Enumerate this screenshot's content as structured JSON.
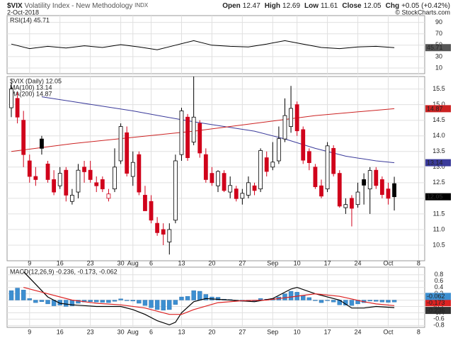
{
  "header": {
    "symbol": "$VIX",
    "name": "Volatility Index - New Methodology",
    "exchange": "INDX",
    "date": "2-Oct-2018",
    "copyright": "© StockCharts.com",
    "quote": [
      {
        "label": "Open",
        "value": "12.47"
      },
      {
        "label": "High",
        "value": "12.69"
      },
      {
        "label": "Low",
        "value": "11.61"
      },
      {
        "label": "Close",
        "value": "12.05"
      },
      {
        "label": "Chg",
        "value": "+0.05 (+0.42%)"
      }
    ]
  },
  "chart_data": [
    {
      "type": "candlestick",
      "title": "$VIX (Daily) 12.05",
      "open": [
        14.9,
        15.2,
        14.5,
        13.2,
        12.7,
        13.9,
        13.1,
        12.6,
        12.4,
        12.9,
        11.9,
        12.2,
        13.0,
        12.9,
        12.5,
        12.6,
        12.0,
        12.3,
        13.2,
        14.1,
        12.7,
        13.4,
        12.1,
        11.9,
        11.2,
        11.0,
        10.6,
        11.3,
        13.4,
        14.6,
        13.8,
        14.4,
        13.4,
        12.8,
        12.4,
        12.8,
        12.2,
        12.3,
        12.0,
        12.1,
        12.4,
        12.3,
        13.3,
        13.0,
        13.2,
        13.9,
        14.3,
        15.0,
        14.2,
        13.5,
        13.0,
        12.4,
        12.3,
        13.6,
        12.8,
        11.7,
        12.0,
        11.8,
        12.6,
        12.3,
        12.9,
        12.6,
        12.3,
        12.47
      ],
      "high": [
        15.7,
        15.4,
        14.8,
        13.4,
        13.0,
        14.0,
        13.2,
        12.9,
        13.0,
        13.0,
        12.3,
        13.1,
        13.2,
        13.2,
        12.7,
        12.7,
        12.3,
        13.6,
        14.4,
        14.3,
        13.5,
        13.5,
        12.4,
        12.1,
        11.4,
        11.2,
        11.2,
        13.4,
        14.9,
        14.7,
        15.9,
        14.5,
        13.6,
        13.0,
        12.9,
        12.9,
        12.7,
        12.4,
        12.3,
        12.7,
        12.5,
        13.6,
        13.5,
        13.8,
        14.3,
        15.2,
        15.6,
        15.1,
        14.3,
        13.6,
        13.1,
        12.6,
        13.8,
        13.7,
        12.9,
        12.0,
        12.1,
        12.5,
        12.8,
        13.0,
        13.0,
        12.7,
        12.5,
        12.69
      ],
      "low": [
        14.6,
        14.4,
        13.0,
        12.5,
        12.4,
        13.4,
        12.5,
        12.1,
        12.3,
        11.9,
        11.8,
        12.0,
        12.5,
        12.5,
        12.2,
        12.2,
        11.9,
        12.2,
        13.1,
        12.7,
        12.4,
        12.1,
        11.6,
        11.2,
        10.8,
        10.5,
        10.2,
        11.2,
        13.2,
        13.2,
        13.7,
        13.3,
        12.5,
        12.4,
        12.2,
        12.2,
        12.0,
        11.9,
        11.8,
        12.0,
        12.1,
        12.2,
        12.7,
        12.9,
        13.1,
        13.8,
        14.1,
        14.0,
        13.1,
        12.9,
        12.3,
        12.0,
        12.2,
        12.7,
        11.7,
        11.5,
        11.1,
        11.7,
        11.8,
        11.5,
        12.3,
        12.0,
        11.8,
        11.61
      ],
      "close": [
        15.5,
        14.6,
        13.4,
        12.7,
        12.6,
        13.6,
        12.6,
        12.2,
        12.8,
        12.1,
        12.1,
        12.9,
        12.85,
        12.6,
        12.4,
        12.3,
        12.14,
        13.0,
        14.3,
        12.8,
        13.15,
        12.2,
        11.6,
        11.3,
        10.9,
        10.85,
        11.0,
        13.2,
        14.8,
        13.3,
        14.6,
        13.45,
        12.6,
        12.5,
        12.86,
        12.25,
        12.41,
        11.99,
        12.16,
        12.5,
        12.25,
        13.53,
        12.86,
        13.16,
        13.91,
        14.65,
        14.88,
        14.16,
        13.22,
        13.14,
        12.37,
        12.07,
        13.68,
        12.79,
        11.75,
        11.8,
        11.68,
        12.2,
        12.42,
        12.89,
        12.41,
        12.12,
        12.0,
        12.05
      ],
      "up_color": "#000000",
      "down_color": "#d0021b",
      "series": [
        {
          "name": "MA(100) 13.14",
          "color": "#3a3a9a",
          "x": [
            5,
            10,
            15,
            20,
            25,
            30,
            35,
            40,
            45,
            50,
            55,
            60,
            63
          ],
          "values": [
            15.25,
            15.1,
            14.95,
            14.8,
            14.62,
            14.45,
            14.3,
            14.15,
            13.9,
            13.6,
            13.35,
            13.2,
            13.14
          ]
        },
        {
          "name": "MA(200) 14.87",
          "color": "#cc2222",
          "x": [
            0,
            10,
            20,
            30,
            40,
            50,
            60,
            63
          ],
          "values": [
            13.5,
            13.75,
            13.95,
            14.15,
            14.4,
            14.65,
            14.82,
            14.87
          ]
        }
      ],
      "xlim": [
        -0.7,
        68
      ],
      "xticks": [
        {
          "value": 3,
          "label": "9"
        },
        {
          "value": 8,
          "label": "16"
        },
        {
          "value": 13,
          "label": "23"
        },
        {
          "value": 18,
          "label": "30"
        },
        {
          "value": 20,
          "label": "Aug"
        },
        {
          "value": 23,
          "label": "6"
        },
        {
          "value": 28,
          "label": "13"
        },
        {
          "value": 33,
          "label": "20"
        },
        {
          "value": 38,
          "label": "27"
        },
        {
          "value": 43,
          "label": "Sep"
        },
        {
          "value": 47,
          "label": "10"
        },
        {
          "value": 52,
          "label": "17"
        },
        {
          "value": 57,
          "label": "24"
        },
        {
          "value": 62,
          "label": "Oct"
        },
        {
          "value": 67,
          "label": "8"
        }
      ],
      "ylim": [
        10.0,
        15.9
      ],
      "yticks": [
        10.5,
        {
          "value": 11,
          "label": "11.0"
        },
        11.5,
        {
          "value": 12,
          "label": "12.0"
        },
        12.5,
        {
          "value": 13,
          "label": "13.0"
        },
        13.5,
        {
          "value": 14,
          "label": "14.0"
        },
        14.5,
        {
          "value": 15,
          "label": "15.0"
        },
        15.5
      ],
      "grid": true
    },
    {
      "type": "line",
      "title": "RSI(14) 45.71",
      "series": [
        {
          "name": "RSI(14)",
          "color": "#000000",
          "x": [
            0,
            3,
            6,
            9,
            12,
            15,
            18,
            21,
            24,
            27,
            30,
            33,
            36,
            39,
            42,
            45,
            48,
            51,
            54,
            57,
            60,
            63
          ],
          "values": [
            52,
            44,
            48,
            45,
            49,
            46,
            51,
            47,
            42,
            50,
            58,
            50,
            48,
            47,
            52,
            58,
            52,
            46,
            44,
            47,
            48,
            45.71
          ]
        }
      ],
      "ylim": [
        0,
        102
      ],
      "yticks": [
        90,
        70,
        50,
        30,
        10
      ],
      "grid": true
    },
    {
      "type": "macd",
      "title": "MACD(12,26,9) -0.236, -0.173, -0.062",
      "series": [
        {
          "name": "MACD",
          "color": "#000000",
          "x": [
            2,
            4,
            6,
            8,
            10,
            14,
            18,
            20,
            22,
            24,
            26,
            27,
            28,
            30,
            32,
            36,
            40,
            43,
            46,
            47,
            50,
            54,
            56,
            58,
            60,
            63
          ],
          "values": [
            0.9,
            0.5,
            0.1,
            -0.1,
            -0.15,
            -0.2,
            -0.2,
            -0.3,
            -0.45,
            -0.65,
            -0.78,
            -0.7,
            -0.4,
            -0.05,
            0.05,
            0.0,
            -0.05,
            0.05,
            0.35,
            0.4,
            0.2,
            0.0,
            -0.25,
            -0.25,
            -0.2,
            -0.236
          ]
        },
        {
          "name": "Signal",
          "color": "#dd2222",
          "x": [
            2,
            6,
            10,
            14,
            18,
            22,
            26,
            28,
            30,
            34,
            38,
            42,
            46,
            50,
            54,
            58,
            60,
            63
          ],
          "values": [
            0.4,
            0.2,
            0.0,
            -0.1,
            -0.15,
            -0.25,
            -0.45,
            -0.45,
            -0.3,
            -0.08,
            -0.02,
            0.0,
            0.1,
            0.2,
            0.12,
            -0.05,
            -0.12,
            -0.173
          ]
        }
      ],
      "histogram": {
        "color": "#3d8fd1",
        "values": [
          0.3,
          0.38,
          0.32,
          0.05,
          -0.08,
          -0.05,
          -0.12,
          -0.18,
          -0.16,
          -0.2,
          -0.18,
          -0.1,
          -0.06,
          -0.05,
          -0.06,
          -0.07,
          -0.08,
          -0.04,
          0.04,
          -0.02,
          -0.03,
          -0.1,
          -0.17,
          -0.24,
          -0.3,
          -0.32,
          -0.3,
          -0.14,
          0.1,
          0.12,
          0.3,
          0.28,
          0.18,
          0.1,
          0.09,
          0.03,
          0.02,
          -0.03,
          -0.04,
          -0.03,
          -0.05,
          0.05,
          0.03,
          0.05,
          0.1,
          0.2,
          0.28,
          0.25,
          0.15,
          0.08,
          -0.02,
          -0.08,
          -0.02,
          -0.06,
          -0.15,
          -0.16,
          -0.17,
          -0.12,
          -0.08,
          -0.03,
          -0.04,
          -0.06,
          -0.07,
          -0.062
        ]
      },
      "ylim": [
        -0.86,
        1.04
      ],
      "yticks": [
        0.8,
        0.6,
        0.4,
        0.2,
        {
          "value": 0,
          "label": "0.0"
        },
        -0.2,
        -0.4,
        -0.6,
        -0.8
      ],
      "grid": true
    }
  ]
}
